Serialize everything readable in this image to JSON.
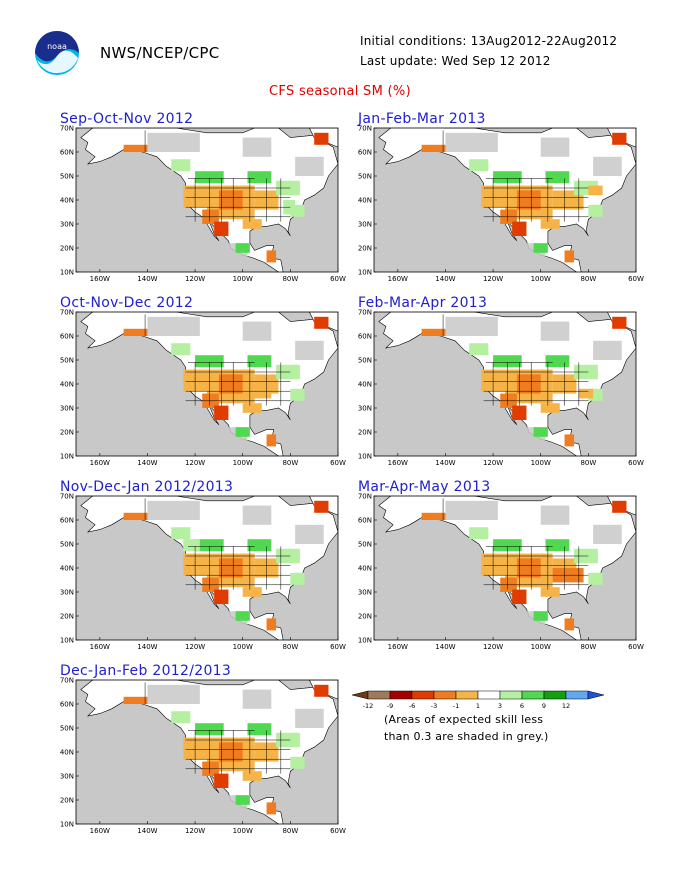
{
  "header": {
    "org": "NWS/NCEP/CPC",
    "initial_conditions": "Initial conditions: 13Aug2012-22Aug2012",
    "last_update": "Last update: Wed Sep 12 2012",
    "logo_text": "noaa"
  },
  "title": "CFS seasonal SM (%)",
  "axes": {
    "lat_labels": [
      "70N",
      "60N",
      "50N",
      "40N",
      "30N",
      "20N",
      "10N"
    ],
    "lon_labels": [
      "160W",
      "140W",
      "120W",
      "100W",
      "80W",
      "60W"
    ]
  },
  "panels": [
    {
      "title": "Sep-Oct-Nov 2012"
    },
    {
      "title": "Jan-Feb-Mar 2013"
    },
    {
      "title": "Oct-Nov-Dec 2012"
    },
    {
      "title": "Feb-Mar-Apr 2013"
    },
    {
      "title": "Nov-Dec-Jan 2012/2013"
    },
    {
      "title": "Mar-Apr-May 2013"
    },
    {
      "title": "Dec-Jan-Feb 2012/2013"
    }
  ],
  "legend": {
    "ticks": [
      "-12",
      "-9",
      "-6",
      "-3",
      "-1",
      "1",
      "3",
      "6",
      "9",
      "12"
    ],
    "colors": [
      "#6b3a1e",
      "#a0785a",
      "#a80000",
      "#e03c00",
      "#f07c20",
      "#f6b448",
      "#ffffff",
      "#b4f0a0",
      "#50d850",
      "#10a010",
      "#60a8f0",
      "#2050e0"
    ],
    "note_line1": "(Areas of expected skill less",
    "note_line2": "than 0.3 are shaded in grey.)"
  },
  "colors": {
    "ocean": "#c8c8c8",
    "land": "#ffffff",
    "dry_light": "#f6b448",
    "dry_med": "#f07c20",
    "dry_strong": "#e03c00",
    "wet_light": "#b4f0a0",
    "wet_med": "#50d850",
    "title_red": "#e00000",
    "panel_title_blue": "#2020d0"
  }
}
